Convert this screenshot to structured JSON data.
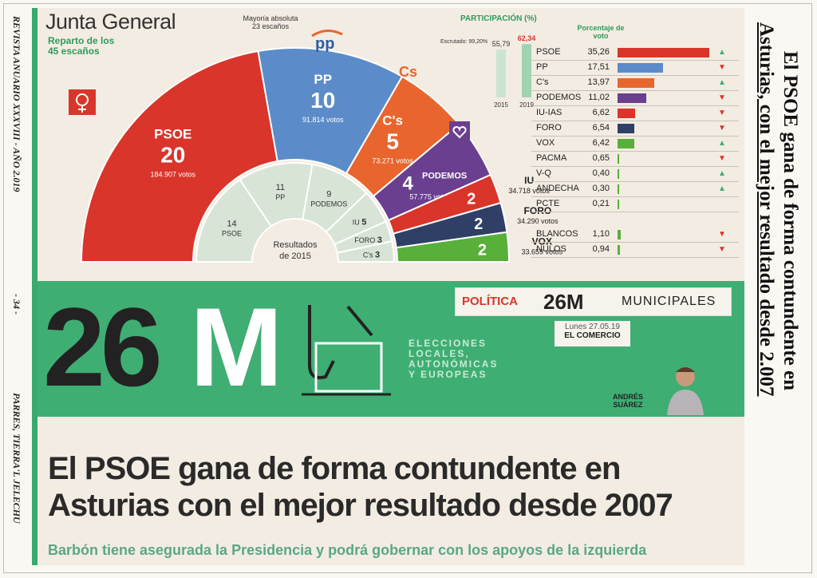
{
  "side_left": {
    "journal": "REVISTA ANUARIO XXXVIII - AÑO 2.019",
    "page": "- 34 -",
    "org": "PARRES, TIERRA'L JELECHU"
  },
  "side_right": {
    "line1": "El PSOE gana de forma contundente en",
    "line2": "Asturias, con el mejor resultado desde 2.007"
  },
  "infographic": {
    "title": "Junta General",
    "subtitle1": "Reparto de los",
    "subtitle2": "45 escaños",
    "majority_label": "Mayoría absoluta",
    "majority_value": "23 escaños",
    "pp_logo": "pp",
    "cs_logo": "Cs",
    "prev_results_label1": "Resultados",
    "prev_results_label2": "de 2015"
  },
  "chart_data": [
    {
      "type": "pie",
      "title": "Junta General",
      "subtitle": "Reparto de los 45 escaños",
      "series": [
        {
          "name": "PSOE",
          "seats": 20,
          "votes": "184.907 votos",
          "color": "#d9352b"
        },
        {
          "name": "PP",
          "seats": 10,
          "votes": "91.814 votos",
          "color": "#5b8cc9"
        },
        {
          "name": "C's",
          "seats": 5,
          "votes": "73.271 votos",
          "color": "#e8662e"
        },
        {
          "name": "PODEMOS",
          "seats": 4,
          "votes": "57.775 votos",
          "color": "#6b3f8f"
        },
        {
          "name": "IU",
          "seats": 2,
          "votes": "34.718 votos",
          "color": "#d9352b"
        },
        {
          "name": "FORO",
          "seats": 2,
          "votes": "34.290 votos",
          "color": "#2f3f66"
        },
        {
          "name": "VOX",
          "seats": 2,
          "votes": "33.659 votos",
          "color": "#58b03a"
        }
      ],
      "inner_2015": [
        {
          "name": "PSOE",
          "seats": 14
        },
        {
          "name": "PP",
          "seats": 11
        },
        {
          "name": "PODEMOS",
          "seats": 9
        },
        {
          "name": "IU",
          "seats": 5
        },
        {
          "name": "FORO",
          "seats": 3
        },
        {
          "name": "C's",
          "seats": 3
        }
      ]
    },
    {
      "type": "bar",
      "title": "PARTICIPACIÓN (%)",
      "categories": [
        "2015",
        "2019"
      ],
      "values": [
        55.79,
        62.34
      ],
      "annotation": "Escrutado: 99,20%"
    },
    {
      "type": "bar",
      "title": "Porcentaje de voto",
      "categories": [
        "PSOE",
        "PP",
        "C's",
        "PODEMOS",
        "IU-IAS",
        "FORO",
        "VOX",
        "PACMA",
        "V-Q",
        "ANDECHA",
        "PCTE",
        "BLANCOS",
        "NULOS"
      ],
      "values": [
        35.26,
        17.51,
        13.97,
        11.02,
        6.62,
        6.54,
        6.42,
        0.65,
        0.4,
        0.3,
        0.21,
        1.1,
        0.94
      ],
      "labels": [
        "35,26",
        "17,51",
        "13,97",
        "11,02",
        "6,62",
        "6,54",
        "6,42",
        "0,65",
        "0,40",
        "0,30",
        "0,21",
        "1,10",
        "0,94"
      ],
      "colors": [
        "#d9352b",
        "#5b8cc9",
        "#e8662e",
        "#6b3f8f",
        "#d9352b",
        "#2f3f66",
        "#58b03a",
        "#58b03a",
        "#58b03a",
        "#58b03a",
        "#58b03a",
        "#58b03a",
        "#58b03a"
      ],
      "trend": [
        "up",
        "down",
        "up",
        "down",
        "down",
        "down",
        "up",
        "down",
        "up",
        "up",
        "",
        "down",
        "down"
      ]
    }
  ],
  "banner": {
    "politica": "POLÍTICA",
    "tag": "26M",
    "municipales": "MUNICIPALES",
    "date": "Lunes 27.05.19",
    "paper": "EL COMERCIO",
    "big_num": "26",
    "big_letter": "M",
    "elections": [
      "ELECCIONES",
      "LOCALES,",
      "AUTONÓMICAS",
      "Y EUROPEAS"
    ],
    "author1": "ANDRÉS",
    "author2": "SUÁREZ"
  },
  "article": {
    "headline1": "El PSOE gana de forma contundente en",
    "headline2": "Asturias con el mejor resultado desde 2007",
    "subhead": "Barbón tiene asegurada la Presidencia y podrá gobernar con los apoyos de la izquierda"
  },
  "colors": {
    "green": "#3fae73",
    "red": "#d9352b",
    "blue": "#5b8cc9"
  }
}
